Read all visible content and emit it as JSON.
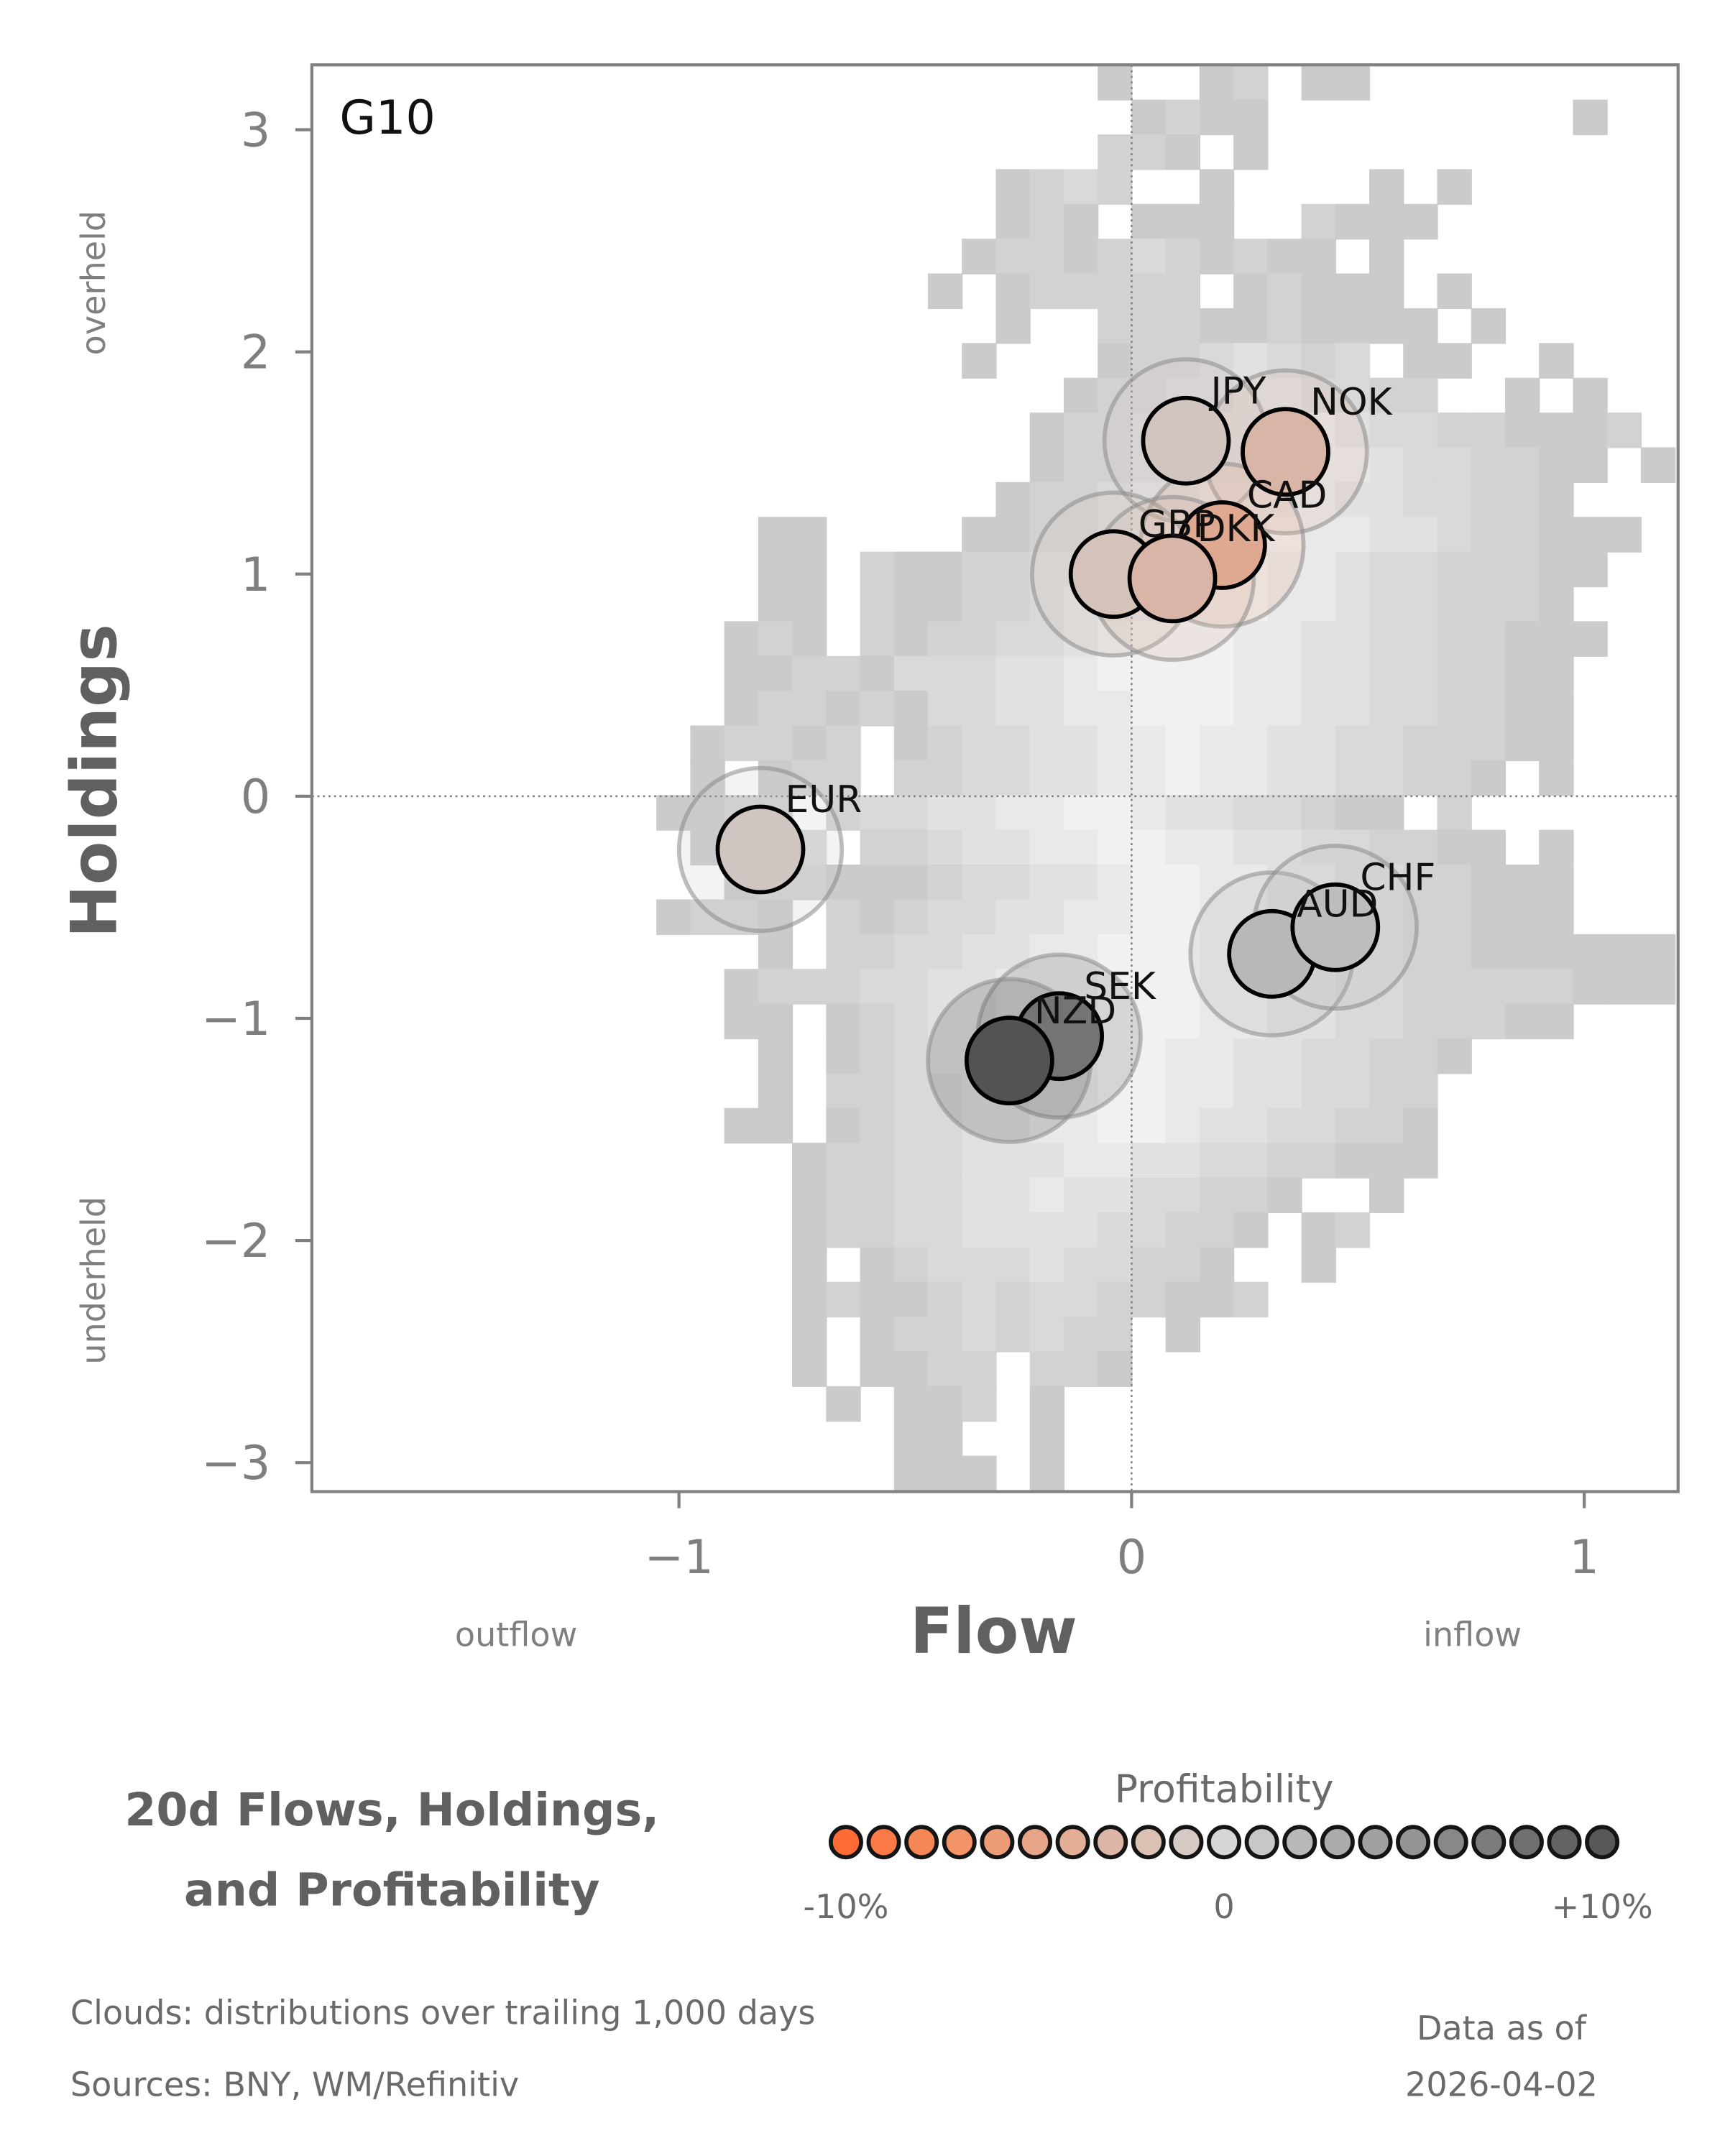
{
  "chart_data": {
    "type": "scatter",
    "title": "20d Flows, Holdings, and Profitability",
    "title_lines": [
      "20d Flows, Holdings,",
      "and Profitability"
    ],
    "panel_label": "G10",
    "xlabel": "Flow",
    "ylabel": "Holdings",
    "x_side_labels": {
      "left": "outflow",
      "right": "inflow"
    },
    "y_side_labels": {
      "top": "overheld",
      "bottom": "underheld"
    },
    "xlim": [
      -1.82,
      1.21
    ],
    "ylim": [
      -3.15,
      3.3
    ],
    "xticks": [
      {
        "v": -1,
        "label": "−1"
      },
      {
        "v": 0,
        "label": "0"
      },
      {
        "v": 1,
        "label": "1"
      }
    ],
    "yticks": [
      {
        "v": 3,
        "label": "3"
      },
      {
        "v": 2,
        "label": "2"
      },
      {
        "v": 1,
        "label": "1"
      },
      {
        "v": 0,
        "label": "0"
      },
      {
        "v": -1,
        "label": "−1"
      },
      {
        "v": -2,
        "label": "−2"
      },
      {
        "v": -3,
        "label": "−3"
      }
    ],
    "reference_lines": {
      "x": 0,
      "y": 0,
      "style": "dotted"
    },
    "points": [
      {
        "label": "JPY",
        "flow": 0.12,
        "holdings": 1.6,
        "color": "#D0C5BF"
      },
      {
        "label": "NOK",
        "flow": 0.34,
        "holdings": 1.55,
        "color": "#D8B5A6"
      },
      {
        "label": "CAD",
        "flow": 0.2,
        "holdings": 1.13,
        "color": "#DFA890"
      },
      {
        "label": "GBP",
        "flow": -0.04,
        "holdings": 1.0,
        "color": "#D3C3BB"
      },
      {
        "label": "DKK",
        "flow": 0.09,
        "holdings": 0.98,
        "color": "#D8B5A6"
      },
      {
        "label": "EUR",
        "flow": -0.82,
        "holdings": -0.24,
        "color": "#CFC6C2"
      },
      {
        "label": "AUD",
        "flow": 0.31,
        "holdings": -0.71,
        "color": "#B7B8B7"
      },
      {
        "label": "CHF",
        "flow": 0.45,
        "holdings": -0.59,
        "color": "#BCBEBD"
      },
      {
        "label": "SEK",
        "flow": -0.16,
        "holdings": -1.08,
        "color": "#737476"
      },
      {
        "label": "NZD",
        "flow": -0.27,
        "holdings": -1.19,
        "color": "#525355"
      }
    ],
    "legend": {
      "title": "Profitability",
      "tick_labels": [
        "-10%",
        "0",
        "+10%"
      ],
      "range": [
        -10,
        10
      ],
      "colors": [
        "#FF6B35",
        "#FC7A48",
        "#F78656",
        "#F39468",
        "#EC9C77",
        "#E7A588",
        "#E3AE96",
        "#DDB5A6",
        "#DBC0B4",
        "#D6CAC4",
        "#D6D6D6",
        "#C7C7C7",
        "#B8B8B8",
        "#ABABAB",
        "#A0A0A0",
        "#949494",
        "#888888",
        "#7C7C7C",
        "#707070",
        "#636363",
        "#585858"
      ]
    },
    "cloud": {
      "description": "distributions over trailing 1,000 days",
      "shades": {
        "1": "#CBCBCB",
        "2": "#D2D2D2",
        "3": "#D9D9D9",
        "4": "#E1E1E1",
        "5": "#E9E9E9",
        "6": "#F1F1F1"
      },
      "col_origin": 451,
      "col_w": 24.6,
      "row_origin": 47,
      "row_h": 25.2,
      "rows": [
        "..............1..12.11.........",
        "...............1211.........1..",
        "..............221.1............",
        "...........1232..1....1.1......",
        "...........121.111..2111.......",
        "..........12212321211.1........",
        ".........1.122222.12111.1......",
        "...........1..2221121111.1.....",
        "..........1...12234323.11..1...",
        ".............12233443322..1.1..",
        "............122334455433221112.",
        "............12233444554332211.1",
        "...........12234455554433221...",
        "....11....11223455565544322111.",
        "....11.2112233456665543322211..",
        "....11.211223445666554332221...",
        "...121.2122334566655443322111..",
        "...1122133344566665544332211...",
        "...1221213344556665544332211...",
        "..12212.12334455655443322211...",
        "..1.122.223344556554433221.1...",
        ".1122.23344556654433211.2......",
        "..1223.2234455665544332211.1...",
        "...1221112334456655443322111...",
        ".1221.2123344556655443322111...",
        "....1.2233445566655443322111111",
        "...1222334455566655443322222111",
        "...11.1234455566655443322211...",
        "....1.1234455566554433221......",
        "....1.223344556655443322.......",
        "...11.123344556654433221.......",
        ".....1223344455443322111.......",
        ".....122334454433221..1........",
        ".....12233444433221.12.........",
        ".....1.12333433221..1..........",
        ".....12112323322112............",
        ".....1.12232322.1..............",
        ".....1.1122.221................",
        "......1.112.1..................",
        "........11..1..................",
        "........111.1.................."
      ]
    }
  },
  "footer": {
    "clouds_note": "Clouds:  distributions over trailing 1,000 days",
    "sources": "Sources:  BNY, WM/Refinitiv",
    "data_as_of_label": "Data as of",
    "data_as_of_date": "2026-04-02"
  }
}
